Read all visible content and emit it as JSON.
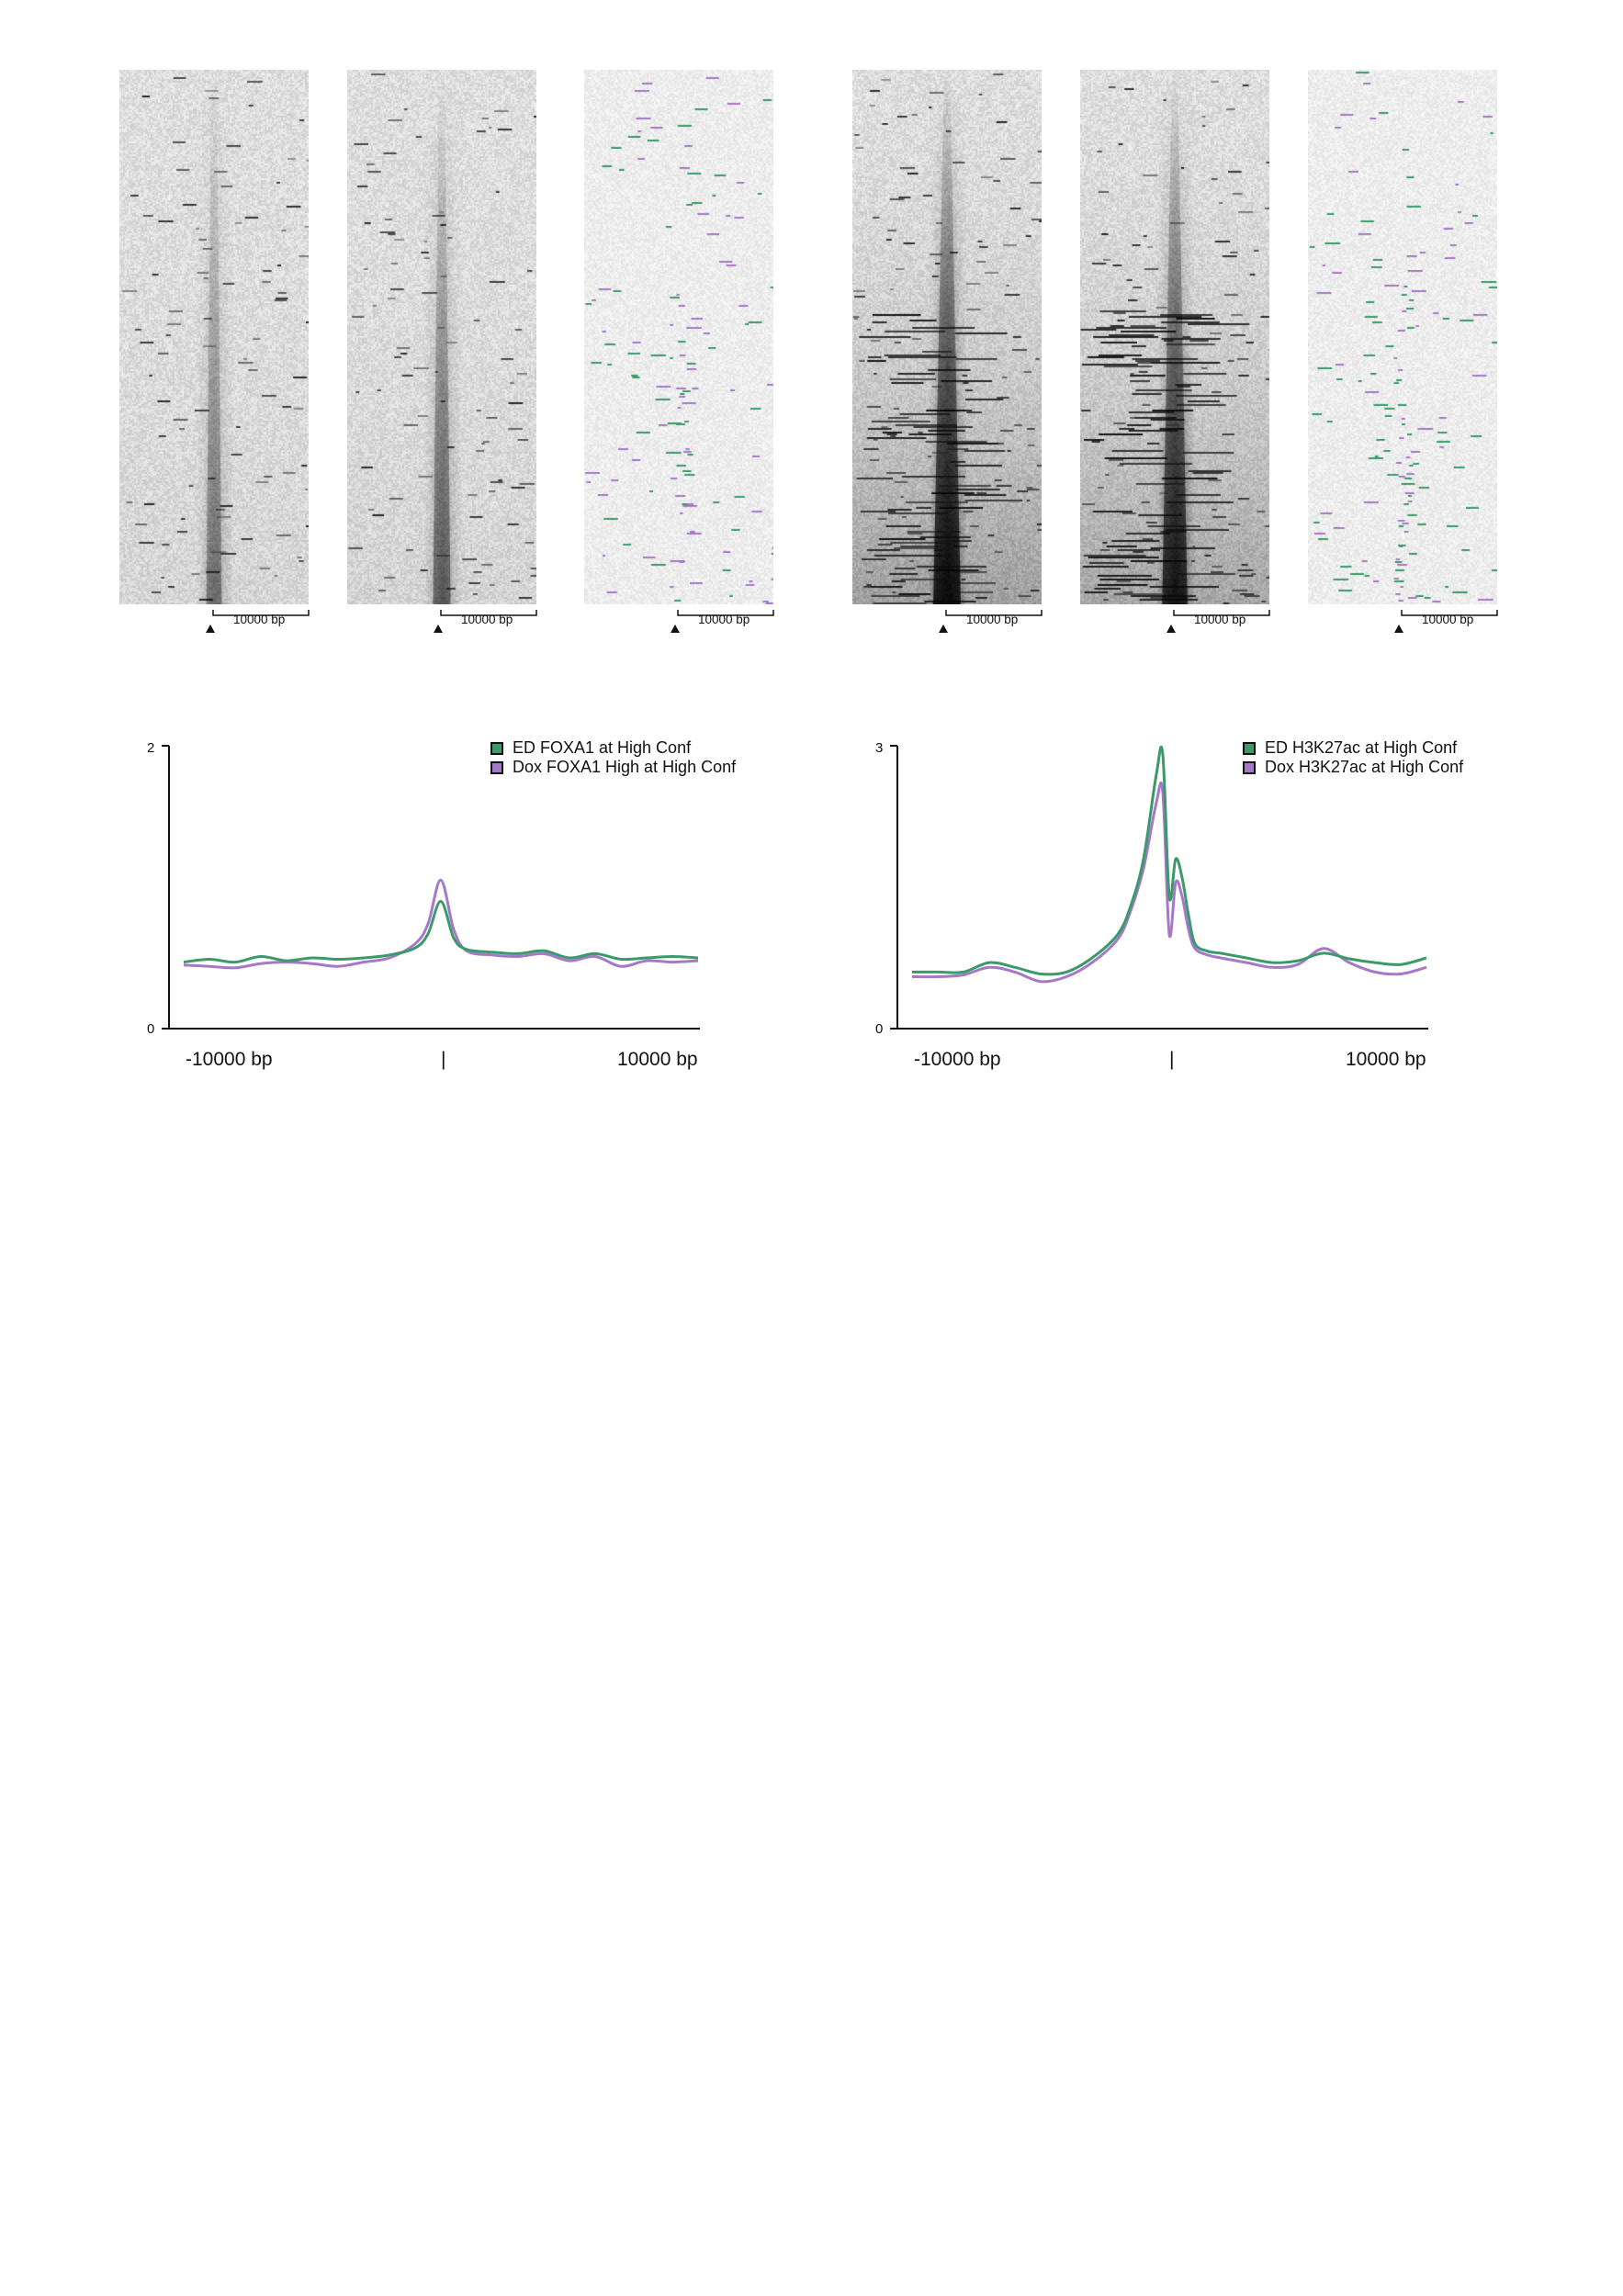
{
  "heatmaps": [
    {
      "id": "hm1",
      "kind": "gray",
      "density": 0.45,
      "scale_label": "10000 bp"
    },
    {
      "id": "hm2",
      "kind": "gray",
      "density": 0.55,
      "scale_label": "10000 bp"
    },
    {
      "id": "hm3",
      "kind": "diff",
      "density": 0.35,
      "scale_label": "10000 bp"
    },
    {
      "id": "hm4",
      "kind": "gray",
      "density": 1.0,
      "scale_label": "10000 bp"
    },
    {
      "id": "hm5",
      "kind": "gray",
      "density": 0.9,
      "scale_label": "10000 bp"
    },
    {
      "id": "hm6",
      "kind": "diff",
      "density": 0.6,
      "scale_label": "10000 bp"
    }
  ],
  "colors": {
    "ed": "#3a9a6a",
    "dox": "#a678c8",
    "axis": "#111111",
    "swatch_ed": "#3a9a6a",
    "swatch_dox": "#a678c8"
  },
  "chart_data": [
    {
      "type": "line",
      "title": "",
      "xlabel": "",
      "ylabel": "",
      "x_range": [
        -10000,
        10000
      ],
      "ylim": [
        0,
        2
      ],
      "y_ticks": [
        "0",
        "2"
      ],
      "x_tick_labels": [
        "-10000 bp",
        "|",
        "10000 bp"
      ],
      "legend_position": "top-right",
      "x": [
        -10000,
        -9000,
        -8000,
        -7000,
        -6000,
        -5000,
        -4000,
        -3000,
        -2000,
        -1000,
        -500,
        0,
        500,
        1000,
        2000,
        3000,
        4000,
        5000,
        6000,
        7000,
        8000,
        9000,
        10000
      ],
      "series": [
        {
          "name": "ED FOXA1 at High Conf",
          "color": "#3a9a6a",
          "values": [
            0.47,
            0.49,
            0.47,
            0.51,
            0.48,
            0.5,
            0.49,
            0.5,
            0.52,
            0.57,
            0.67,
            0.9,
            0.64,
            0.56,
            0.54,
            0.53,
            0.55,
            0.5,
            0.53,
            0.49,
            0.5,
            0.51,
            0.5
          ]
        },
        {
          "name": "Dox FOXA1 High at High Conf",
          "color": "#a678c8",
          "values": [
            0.45,
            0.44,
            0.43,
            0.46,
            0.47,
            0.46,
            0.44,
            0.47,
            0.5,
            0.6,
            0.74,
            1.05,
            0.7,
            0.55,
            0.52,
            0.51,
            0.53,
            0.48,
            0.51,
            0.44,
            0.48,
            0.47,
            0.48
          ]
        }
      ]
    },
    {
      "type": "line",
      "title": "",
      "xlabel": "",
      "ylabel": "",
      "x_range": [
        -10000,
        10000
      ],
      "ylim": [
        0,
        3
      ],
      "y_ticks": [
        "0",
        "3"
      ],
      "x_tick_labels": [
        "-10000 bp",
        "|",
        "10000 bp"
      ],
      "legend_position": "top-right",
      "x": [
        -10000,
        -9000,
        -8000,
        -7000,
        -6000,
        -5000,
        -4000,
        -3000,
        -2000,
        -1500,
        -1000,
        -500,
        -250,
        0,
        250,
        500,
        750,
        1000,
        1500,
        2000,
        3000,
        4000,
        5000,
        6000,
        7000,
        8000,
        9000,
        10000
      ],
      "series": [
        {
          "name": "ED H3K27ac at High Conf",
          "color": "#3a9a6a",
          "values": [
            0.6,
            0.6,
            0.6,
            0.7,
            0.65,
            0.58,
            0.6,
            0.75,
            1.0,
            1.3,
            1.8,
            2.7,
            2.9,
            1.4,
            1.8,
            1.6,
            1.2,
            0.9,
            0.82,
            0.8,
            0.75,
            0.7,
            0.72,
            0.8,
            0.74,
            0.7,
            0.68,
            0.75
          ]
        },
        {
          "name": "Dox H3K27ac at High Conf",
          "color": "#a678c8",
          "values": [
            0.55,
            0.55,
            0.57,
            0.65,
            0.6,
            0.5,
            0.55,
            0.7,
            0.95,
            1.25,
            1.7,
            2.4,
            2.5,
            1.0,
            1.55,
            1.4,
            1.05,
            0.85,
            0.78,
            0.75,
            0.7,
            0.65,
            0.68,
            0.85,
            0.7,
            0.6,
            0.58,
            0.65
          ]
        }
      ]
    }
  ]
}
